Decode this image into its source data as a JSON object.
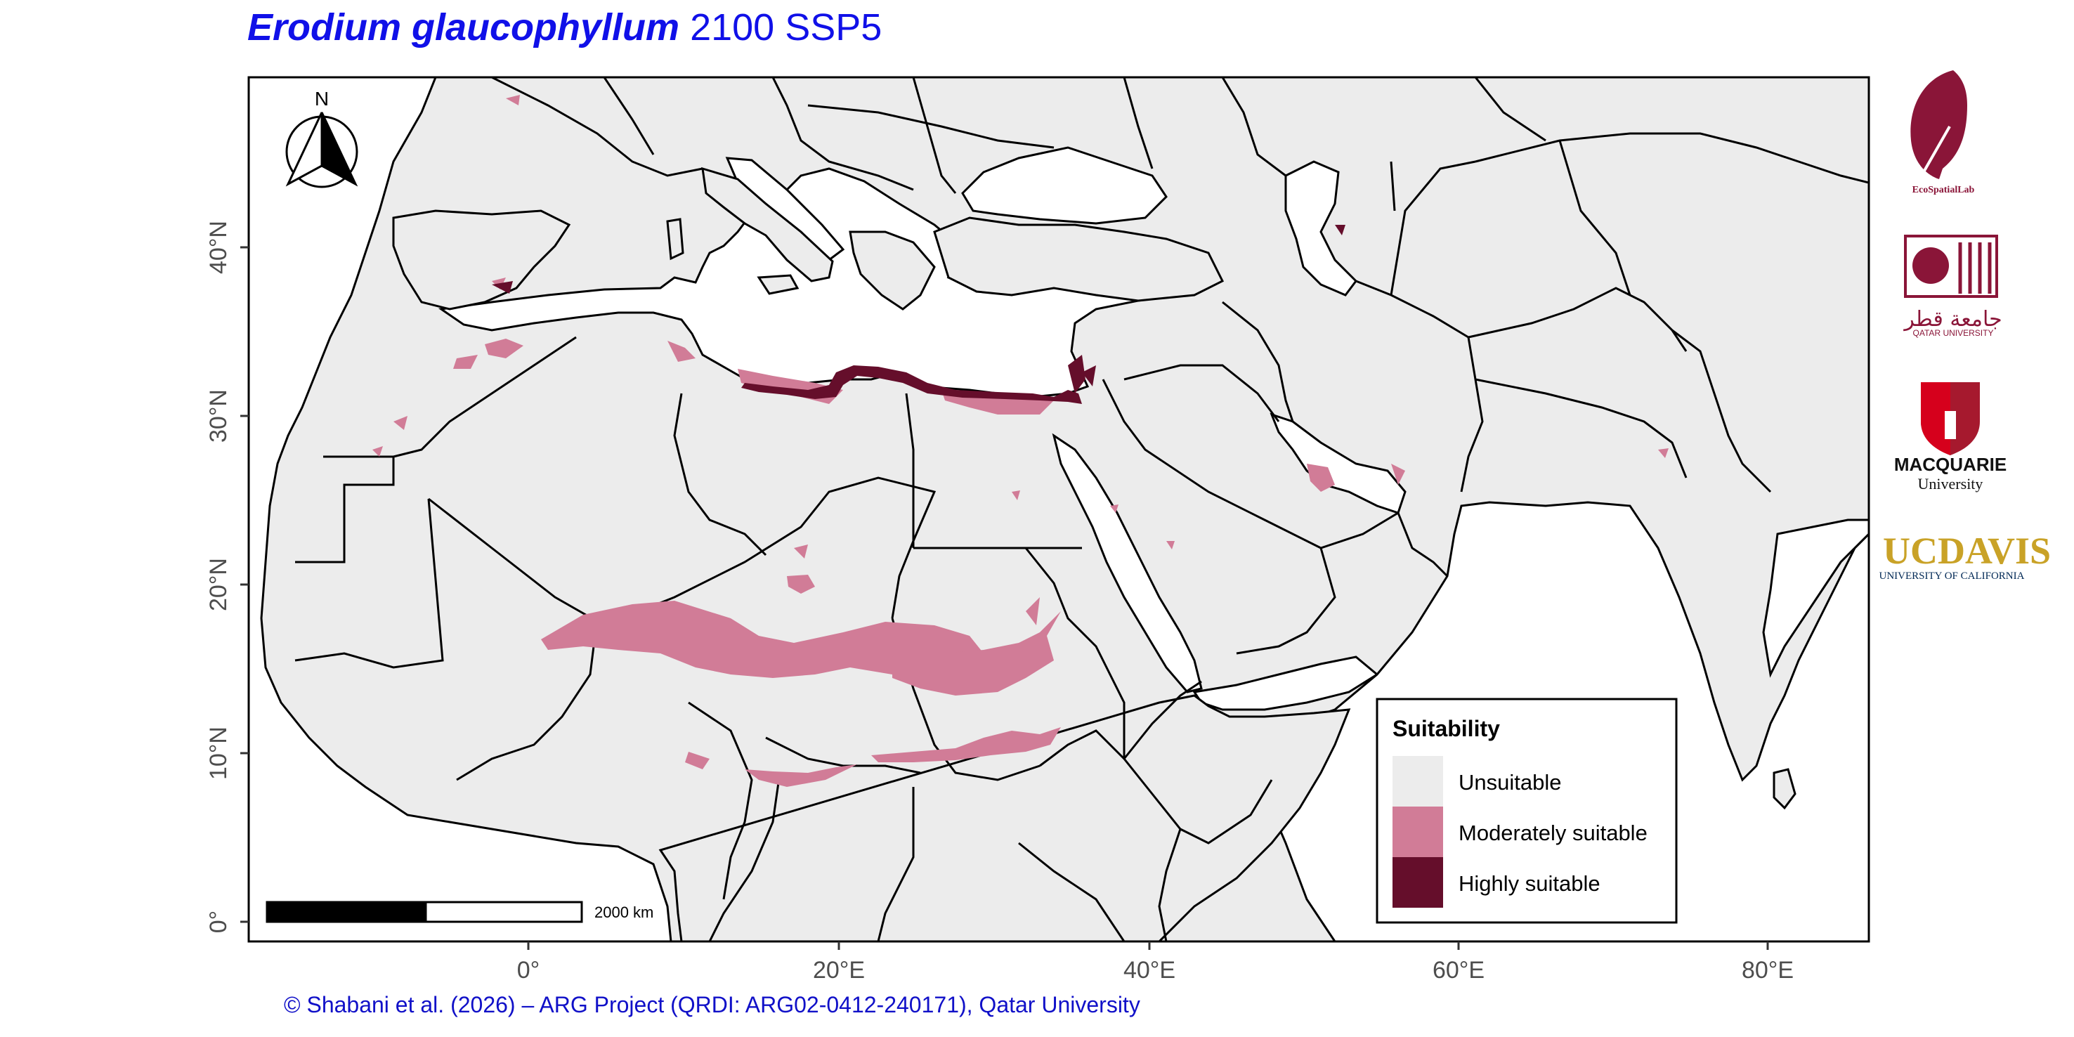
{
  "title": {
    "species": "Erodium glaucophyllum",
    "scenario": "2100 SSP5"
  },
  "credit": "© Shabani et al. (2026) – ARG Project (QRDI: ARG02-0412-240171), Qatar University",
  "north_arrow": {
    "label": "N"
  },
  "scale_bar": {
    "label": "2000 km"
  },
  "axes": {
    "x_ticks": [
      "0°",
      "20°E",
      "40°E",
      "60°E",
      "80°E"
    ],
    "y_ticks": [
      "0°",
      "10°N",
      "20°N",
      "30°N",
      "40°N"
    ]
  },
  "legend": {
    "title": "Suitability",
    "items": [
      {
        "label": "Unsuitable",
        "color": "#ececec"
      },
      {
        "label": "Moderately suitable",
        "color": "#d17c97"
      },
      {
        "label": "Highly suitable",
        "color": "#650e2b"
      }
    ]
  },
  "colors": {
    "land": "#ececec",
    "sea": "#ffffff",
    "moderate": "#d17c97",
    "high": "#650e2b",
    "title": "#1010e8",
    "credit": "#1010c8"
  },
  "logos": {
    "ecospatiallab": "EcoSpatialLab",
    "qatar_arabic": "جامعة قطر",
    "qatar": "QATAR UNIVERSITY",
    "macquarie": "MACQUARIE",
    "macquarie_sub": "University",
    "ucdavis_uc": "UC",
    "ucdavis_davis": "DAVIS",
    "ucdavis_sub": "UNIVERSITY OF CALIFORNIA"
  }
}
